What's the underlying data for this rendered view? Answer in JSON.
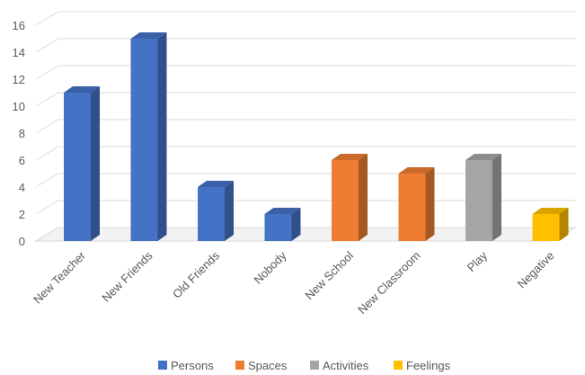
{
  "chart_data": {
    "type": "bar",
    "three_d": true,
    "categories": [
      "New Teacher",
      "New Friends",
      "Old Friends",
      "Nobody",
      "New School",
      "New Classroom",
      "Play",
      "Negative"
    ],
    "values": [
      11,
      15,
      4,
      2,
      6,
      5,
      6,
      2
    ],
    "groups": [
      "Persons",
      "Persons",
      "Persons",
      "Persons",
      "Spaces",
      "Spaces",
      "Activities",
      "Feelings"
    ],
    "legend": [
      {
        "name": "Persons",
        "color": "#4472C4"
      },
      {
        "name": "Spaces",
        "color": "#ED7D31"
      },
      {
        "name": "Activities",
        "color": "#A5A5A5"
      },
      {
        "name": "Feelings",
        "color": "#FFC000"
      }
    ],
    "yticks": [
      "0",
      "2",
      "4",
      "6",
      "8",
      "10",
      "12",
      "14",
      "16"
    ],
    "ylim": [
      0,
      16
    ],
    "grid": true,
    "legend_position": "bottom"
  }
}
